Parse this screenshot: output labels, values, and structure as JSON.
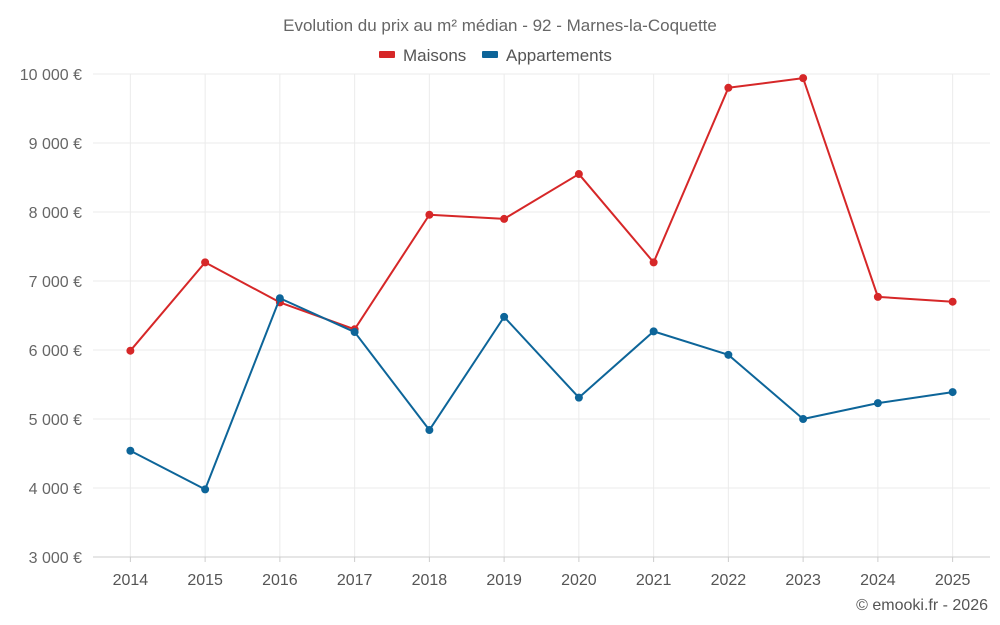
{
  "chart_data": {
    "type": "line",
    "title": "Evolution du prix au m² médian - 92 - Marnes-la-Coquette",
    "categories": [
      "2014",
      "2015",
      "2016",
      "2017",
      "2018",
      "2019",
      "2020",
      "2021",
      "2022",
      "2023",
      "2024",
      "2025"
    ],
    "ylim": [
      3000,
      10000
    ],
    "yticks": [
      3000,
      4000,
      5000,
      6000,
      7000,
      8000,
      9000,
      10000
    ],
    "ytick_labels": [
      "3 000 €",
      "4 000 €",
      "5 000 €",
      "6 000 €",
      "7 000 €",
      "8 000 €",
      "9 000 €",
      "10 000 €"
    ],
    "series": [
      {
        "name": "Maisons",
        "color": "#d62728",
        "values": [
          5990,
          7270,
          6690,
          6300,
          7960,
          7900,
          8550,
          7270,
          9800,
          9940,
          6770,
          6700
        ]
      },
      {
        "name": "Appartements",
        "color": "#0d6599",
        "values": [
          4540,
          3980,
          6750,
          6260,
          4840,
          6480,
          5310,
          6270,
          5930,
          5000,
          5230,
          5390
        ]
      }
    ],
    "legend_position": "top-center",
    "credit": "© emooki.fr - 2026"
  }
}
